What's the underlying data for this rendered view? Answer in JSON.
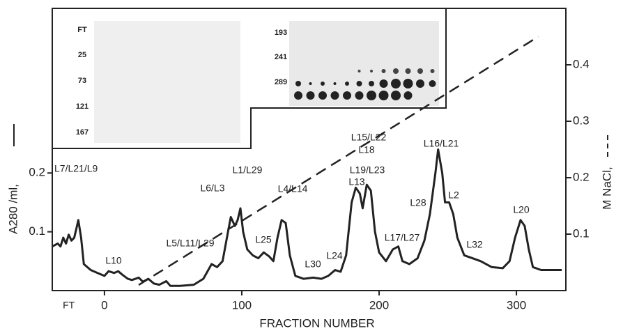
{
  "chart_data": {
    "type": "line",
    "xlabel": "FRACTION NUMBER",
    "ylabel": "A280 /ml,",
    "y2label": "M NaCl,",
    "xlim": [
      -38,
      336
    ],
    "xticks": [
      {
        "value": -26,
        "label": "FT"
      },
      0,
      100,
      200,
      300
    ],
    "ylim": [
      0,
      0.48
    ],
    "yticks": [
      0.1,
      0.2
    ],
    "y2lim": [
      0,
      0.5
    ],
    "y2ticks": [
      0.1,
      0.2,
      0.3,
      0.4
    ],
    "series": [
      {
        "color": "#222",
        "line_style": "solid",
        "x": [
          -38,
          -34,
          -32,
          -30,
          -28,
          -26,
          -24,
          -22,
          -20,
          -19,
          -17,
          -15,
          -10,
          -5,
          0,
          3,
          7,
          10,
          13,
          17,
          20,
          25,
          28,
          32,
          36,
          40,
          45,
          48,
          55,
          65,
          72,
          78,
          82,
          86,
          90,
          92,
          95,
          97,
          99,
          101,
          104,
          108,
          112,
          116,
          120,
          123,
          126,
          129,
          132,
          135,
          139,
          145,
          152,
          158,
          163,
          168,
          172,
          176,
          180,
          183,
          186,
          188,
          191,
          194,
          197,
          200,
          205,
          210,
          214,
          217,
          222,
          228,
          233,
          237,
          241,
          243,
          246,
          248,
          251,
          254,
          257,
          262,
          268,
          274,
          282,
          290,
          295,
          299,
          303,
          306,
          309,
          312,
          318,
          325,
          333
        ],
        "values": [
          0.075,
          0.08,
          0.075,
          0.09,
          0.08,
          0.095,
          0.085,
          0.09,
          0.11,
          0.12,
          0.09,
          0.045,
          0.035,
          0.03,
          0.025,
          0.033,
          0.03,
          0.033,
          0.027,
          0.02,
          0.018,
          0.022,
          0.015,
          0.02,
          0.012,
          0.01,
          0.016,
          0.008,
          0.008,
          0.01,
          0.02,
          0.045,
          0.04,
          0.05,
          0.1,
          0.125,
          0.11,
          0.12,
          0.14,
          0.1,
          0.07,
          0.06,
          0.055,
          0.065,
          0.058,
          0.05,
          0.09,
          0.12,
          0.115,
          0.06,
          0.025,
          0.02,
          0.022,
          0.02,
          0.025,
          0.035,
          0.032,
          0.06,
          0.15,
          0.175,
          0.165,
          0.14,
          0.18,
          0.17,
          0.1,
          0.065,
          0.05,
          0.07,
          0.075,
          0.05,
          0.045,
          0.055,
          0.085,
          0.13,
          0.2,
          0.24,
          0.2,
          0.15,
          0.15,
          0.13,
          0.09,
          0.06,
          0.055,
          0.05,
          0.04,
          0.038,
          0.05,
          0.09,
          0.12,
          0.11,
          0.07,
          0.04,
          0.035,
          0.035,
          0.035
        ]
      },
      {
        "color": "#222",
        "line_style": "dashed",
        "axis": "y2",
        "x": [
          25,
          316
        ],
        "values": [
          0.01,
          0.45
        ]
      }
    ],
    "annotations": [
      "L7/L21/L9",
      "L10",
      "L5/L11/L29",
      "L6/L3",
      "L1/L29",
      "L25",
      "L4/L14",
      "L30",
      "L24",
      "L19/L23",
      "L13",
      "L15/L22",
      "L18",
      "L17/L27",
      "L28",
      "L16/L21",
      "L2",
      "L32",
      "L20"
    ],
    "inset_left_labels": [
      "FT",
      "25",
      "73",
      "121",
      "167"
    ],
    "inset_right_labels": [
      "193",
      "241",
      "289"
    ]
  }
}
